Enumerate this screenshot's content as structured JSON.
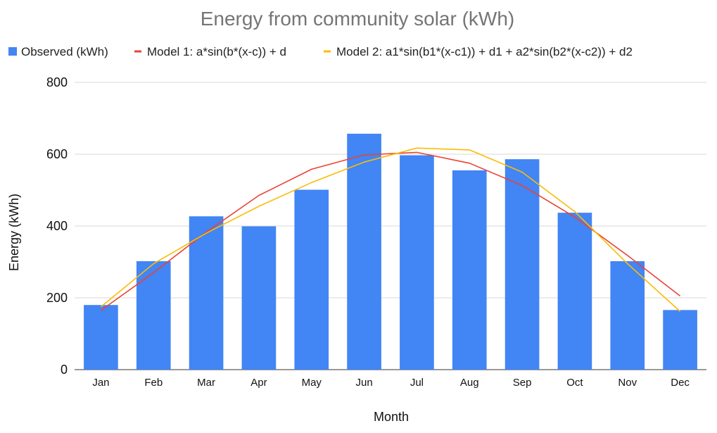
{
  "chart_data": {
    "type": "bar",
    "title": "Energy from community solar (kWh)",
    "xlabel": "Month",
    "ylabel": "Energy (kWh)",
    "ylim": [
      0,
      800
    ],
    "yticks": [
      0,
      200,
      400,
      600,
      800
    ],
    "grid": true,
    "legend_position": "top",
    "categories": [
      "Jan",
      "Feb",
      "Mar",
      "Apr",
      "May",
      "Jun",
      "Jul",
      "Aug",
      "Sep",
      "Oct",
      "Nov",
      "Dec"
    ],
    "series": [
      {
        "name": "Observed (kWh)",
        "type": "bar",
        "color": "#4285f4",
        "values": [
          180,
          302,
          427,
          399,
          501,
          657,
          597,
          555,
          586,
          437,
          302,
          166
        ]
      },
      {
        "name": "Model 1: a*sin(b*(x-c)) + d",
        "type": "line",
        "color": "#ea4335",
        "values": [
          165,
          270,
          383,
          485,
          558,
          598,
          605,
          575,
          513,
          425,
          318,
          205
        ]
      },
      {
        "name": "Model 2: a1*sin(b1*(x-c1)) + d1 + a2*sin(b2*(x-c2)) + d2",
        "type": "line",
        "color": "#fbbc04",
        "values": [
          175,
          295,
          380,
          455,
          521,
          578,
          617,
          612,
          550,
          440,
          295,
          162
        ]
      }
    ]
  }
}
